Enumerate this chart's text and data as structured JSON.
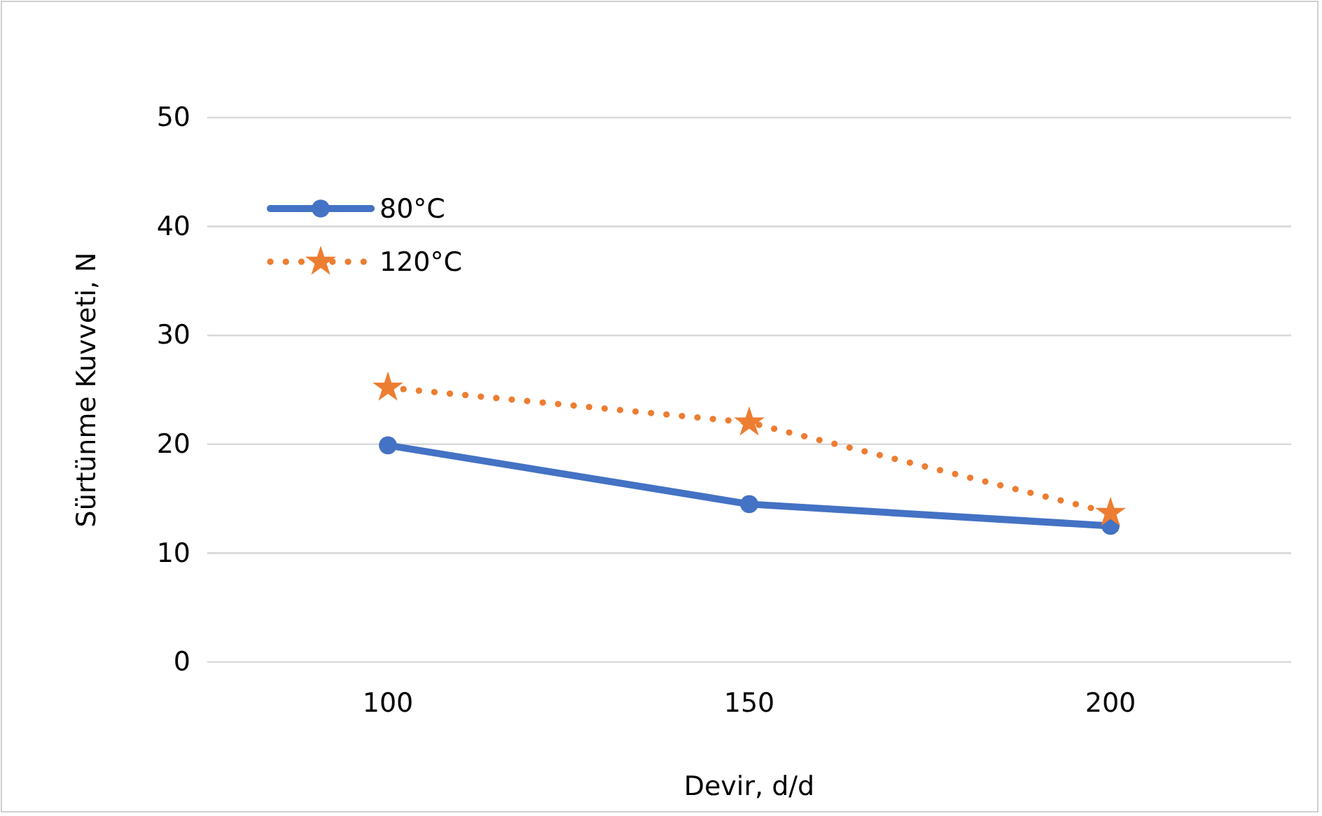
{
  "chart_data": {
    "type": "line",
    "xlabel": "Devir, d/d",
    "ylabel": "Sürtünme Kuvveti, N",
    "categories": [
      "100",
      "150",
      "200"
    ],
    "series": [
      {
        "name": "80°C",
        "color": "#4472c4",
        "values": [
          19.9,
          14.5,
          12.5
        ],
        "marker": "circle",
        "line_style": "solid"
      },
      {
        "name": "120°C",
        "color": "#ed7d31",
        "values": [
          25.2,
          22.0,
          13.7
        ],
        "marker": "star",
        "line_style": "dotted"
      }
    ],
    "ylim": [
      0,
      50
    ],
    "yticks": [
      0,
      10,
      20,
      30,
      40,
      50
    ],
    "grid": "y",
    "legend": "top left"
  }
}
